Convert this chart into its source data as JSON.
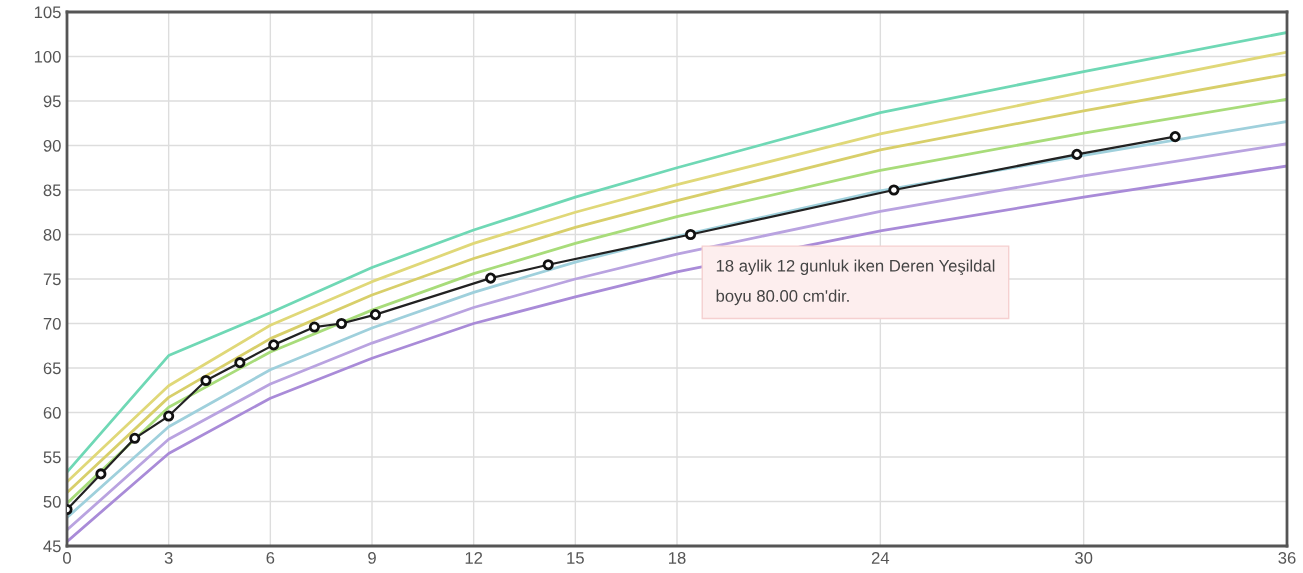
{
  "chart_data": {
    "type": "line",
    "xlim": [
      0,
      36
    ],
    "ylim": [
      45,
      105
    ],
    "xticks": [
      0,
      3,
      6,
      9,
      12,
      15,
      18,
      24,
      30,
      36
    ],
    "yticks": [
      45,
      50,
      55,
      60,
      65,
      70,
      75,
      80,
      85,
      90,
      95,
      100,
      105
    ],
    "grid": true,
    "legend": false,
    "series": [
      {
        "color": "#6fd8b5",
        "x": [
          0,
          3,
          6,
          9,
          12,
          15,
          18,
          24,
          30,
          36
        ],
        "values": [
          53.3,
          66.4,
          71.2,
          76.3,
          80.5,
          84.2,
          87.5,
          93.7,
          98.3,
          102.7
        ]
      },
      {
        "color": "#e0d878",
        "x": [
          0,
          3,
          6,
          9,
          12,
          15,
          18,
          24,
          30,
          36
        ],
        "values": [
          52.2,
          63.0,
          69.8,
          74.7,
          79.0,
          82.5,
          85.6,
          91.3,
          96.0,
          100.5
        ]
      },
      {
        "color": "#d8cf6a",
        "x": [
          0,
          3,
          6,
          9,
          12,
          15,
          18,
          24,
          30,
          36
        ],
        "values": [
          51.0,
          61.7,
          68.3,
          73.2,
          77.3,
          80.8,
          83.8,
          89.5,
          93.9,
          98.0
        ]
      },
      {
        "color": "#a8dc7a",
        "x": [
          0,
          3,
          6,
          9,
          12,
          15,
          18,
          24,
          30,
          36
        ],
        "values": [
          49.8,
          60.6,
          66.8,
          71.5,
          75.6,
          79.0,
          82.0,
          87.2,
          91.4,
          95.2
        ]
      },
      {
        "color": "#9fd0dc",
        "x": [
          0,
          3,
          6,
          9,
          12,
          15,
          18,
          24,
          30,
          36
        ],
        "values": [
          48.2,
          58.4,
          64.8,
          69.5,
          73.5,
          76.9,
          79.8,
          84.9,
          88.9,
          92.7
        ]
      },
      {
        "color": "#b9a3e0",
        "x": [
          0,
          3,
          6,
          9,
          12,
          15,
          18,
          24,
          30,
          36
        ],
        "values": [
          46.8,
          57.0,
          63.2,
          67.8,
          71.8,
          75.0,
          77.8,
          82.6,
          86.6,
          90.2
        ]
      },
      {
        "color": "#a98bd8",
        "x": [
          0,
          3,
          6,
          9,
          12,
          15,
          18,
          24,
          30,
          36
        ],
        "values": [
          45.5,
          55.4,
          61.6,
          66.1,
          70.0,
          73.0,
          75.8,
          80.4,
          84.2,
          87.7
        ]
      },
      {
        "color": "#222222",
        "marker": "circle",
        "x": [
          0,
          1,
          2,
          3,
          4.1,
          5.1,
          6.1,
          7.3,
          8.1,
          9.1,
          12.5,
          14.2,
          18.4,
          24.4,
          29.8,
          32.7
        ],
        "values": [
          49.1,
          53.1,
          57.1,
          59.6,
          63.6,
          65.6,
          67.6,
          69.6,
          70.0,
          71.0,
          75.1,
          76.6,
          80.0,
          85.0,
          89.0,
          91.0
        ]
      }
    ],
    "annotations": [
      {
        "text": "18 aylik 12 gunluk iken Deren Yeşildal\nboyu 80.00 cm'dir.",
        "x": 18.4,
        "y": 80.0
      }
    ]
  }
}
